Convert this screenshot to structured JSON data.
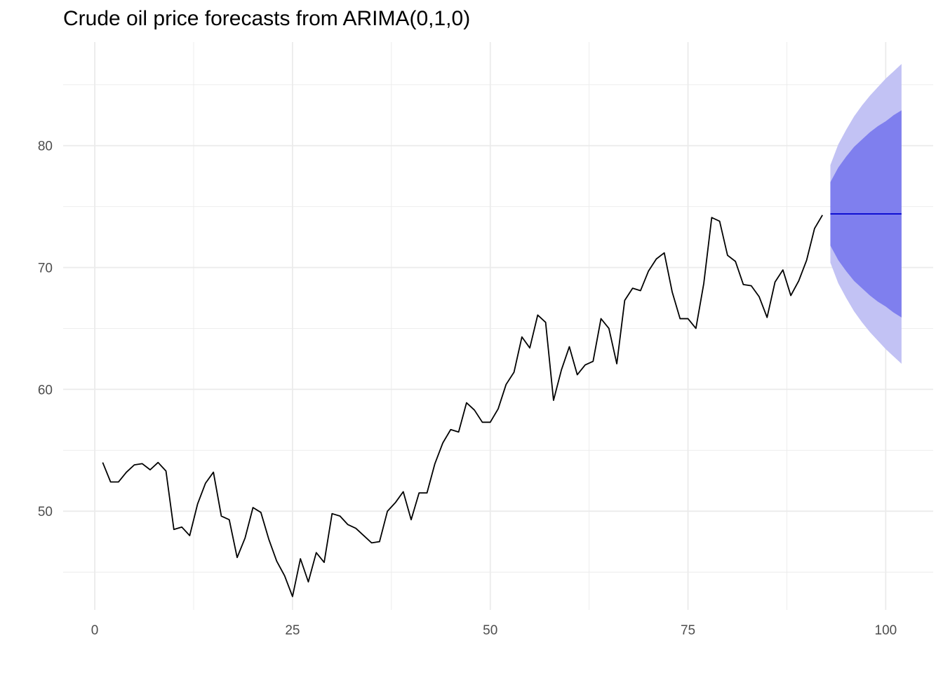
{
  "chart_data": {
    "type": "line",
    "title": "Crude oil price forecasts from ARIMA(0,1,0)",
    "xlabel": "",
    "ylabel": "",
    "xlim": [
      -4,
      106
    ],
    "ylim": [
      41.9,
      88.5
    ],
    "grid": true,
    "legend": "none",
    "x_ticks": [
      0,
      25,
      50,
      75,
      100
    ],
    "x_tick_labels": [
      "0",
      "25",
      "50",
      "75",
      "100"
    ],
    "y_ticks": [
      50,
      60,
      70,
      80
    ],
    "y_tick_labels": [
      "50",
      "60",
      "70",
      "80"
    ],
    "x_minor_ticks": [
      12.5,
      37.5,
      62.5,
      87.5
    ],
    "y_minor_ticks": [
      45,
      55,
      65,
      75,
      85
    ],
    "colors": {
      "history": "#000000",
      "forecast": "#0000cd",
      "band80": "#7f7fee",
      "band95": "#c2c2f4",
      "grid": "#ebebeb"
    },
    "series": [
      {
        "role": "history",
        "x": [
          1,
          2,
          3,
          4,
          5,
          6,
          7,
          8,
          9,
          10,
          11,
          12,
          13,
          14,
          15,
          16,
          17,
          18,
          19,
          20,
          21,
          22,
          23,
          24,
          25,
          26,
          27,
          28,
          29,
          30,
          31,
          32,
          33,
          34,
          35,
          36,
          37,
          38,
          39,
          40,
          41,
          42,
          43,
          44,
          45,
          46,
          47,
          48,
          49,
          50,
          51,
          52,
          53,
          54,
          55,
          56,
          57,
          58,
          59,
          60,
          61,
          62,
          63,
          64,
          65,
          66,
          67,
          68,
          69,
          70,
          71,
          72,
          73,
          74,
          75,
          76,
          77,
          78,
          79,
          80,
          81,
          82,
          83,
          84,
          85,
          86,
          87,
          88,
          89,
          90,
          91,
          92
        ],
        "values": [
          54.0,
          52.4,
          52.4,
          53.2,
          53.8,
          53.9,
          53.4,
          54.0,
          53.3,
          48.5,
          48.7,
          48.0,
          50.6,
          52.3,
          53.2,
          49.6,
          49.3,
          46.2,
          47.8,
          50.3,
          49.9,
          47.7,
          45.9,
          44.7,
          43.0,
          46.1,
          44.2,
          46.6,
          45.8,
          49.8,
          49.6,
          48.9,
          48.6,
          48.0,
          47.4,
          47.5,
          50.0,
          50.7,
          51.6,
          49.3,
          51.5,
          51.5,
          53.9,
          55.6,
          56.7,
          56.5,
          58.9,
          58.3,
          57.3,
          57.3,
          58.4,
          60.4,
          61.4,
          64.3,
          63.4,
          66.1,
          65.5,
          59.1,
          61.6,
          63.5,
          61.2,
          62.0,
          62.3,
          65.8,
          65.0,
          62.1,
          67.3,
          68.3,
          68.1,
          69.7,
          70.7,
          71.2,
          68.0,
          65.8,
          65.8,
          65.0,
          68.7,
          74.1,
          73.8,
          71.0,
          70.5,
          68.6,
          68.5,
          67.6,
          65.9,
          68.8,
          69.8,
          67.7,
          68.9,
          70.6,
          73.2,
          74.3
        ]
      },
      {
        "role": "forecast",
        "x": [
          93,
          94,
          95,
          96,
          97,
          98,
          99,
          100,
          101,
          102
        ],
        "values": [
          74.4,
          74.4,
          74.4,
          74.4,
          74.4,
          74.4,
          74.4,
          74.4,
          74.4,
          74.4
        ],
        "lo80": [
          71.8,
          70.6,
          69.7,
          68.9,
          68.3,
          67.7,
          67.2,
          66.8,
          66.3,
          65.9
        ],
        "hi80": [
          77.0,
          78.2,
          79.1,
          79.9,
          80.5,
          81.1,
          81.6,
          82.0,
          82.5,
          82.9
        ],
        "lo95": [
          70.4,
          68.7,
          67.5,
          66.4,
          65.5,
          64.7,
          64.0,
          63.3,
          62.7,
          62.1
        ],
        "hi95": [
          78.4,
          80.1,
          81.3,
          82.4,
          83.3,
          84.1,
          84.8,
          85.5,
          86.1,
          86.7
        ]
      }
    ]
  }
}
